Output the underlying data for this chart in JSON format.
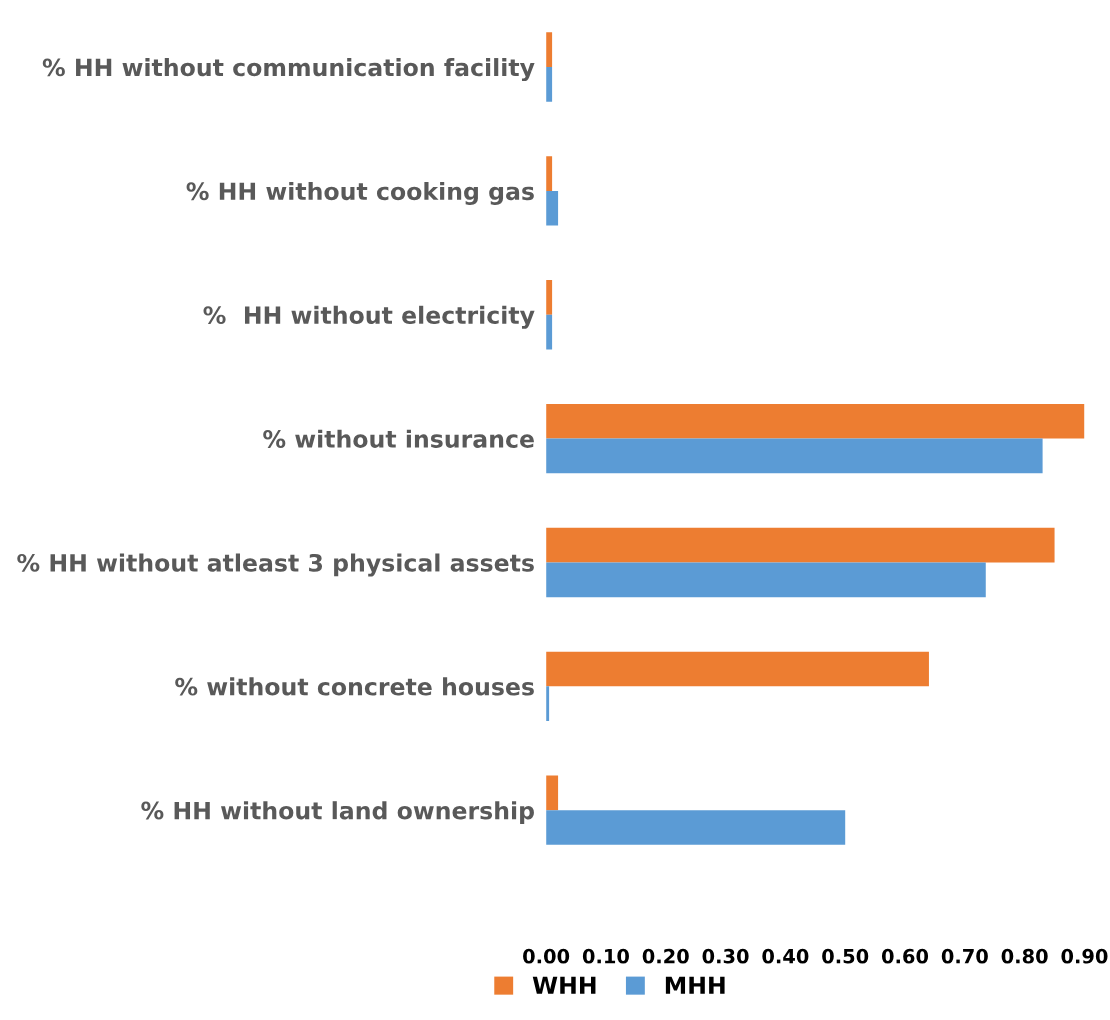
{
  "chart_data": {
    "type": "bar",
    "orientation": "horizontal",
    "categories": [
      "% HH without communication facility",
      "% HH without cooking gas",
      "%  HH without electricity",
      "% without insurance",
      "% HH without atleast 3 physical assets",
      "% without concrete houses",
      "% HH without land ownership"
    ],
    "series": [
      {
        "name": "WHH",
        "color": "#ed7d31",
        "values": [
          0.01,
          0.01,
          0.01,
          0.9,
          0.85,
          0.64,
          0.02
        ]
      },
      {
        "name": "MHH",
        "color": "#5b9bd5",
        "values": [
          0.01,
          0.02,
          0.01,
          0.83,
          0.735,
          0.005,
          0.5
        ]
      }
    ],
    "xlim": [
      0,
      0.9
    ],
    "xticks": [
      {
        "value": 0,
        "label": "0.00"
      },
      {
        "value": 0.1,
        "label": "0.10"
      },
      {
        "value": 0.2,
        "label": "0.20"
      },
      {
        "value": 0.3,
        "label": "0.30"
      },
      {
        "value": 0.4,
        "label": "0.40"
      },
      {
        "value": 0.5,
        "label": "0.50"
      },
      {
        "value": 0.6,
        "label": "0.60"
      },
      {
        "value": 0.7,
        "label": "0.70"
      },
      {
        "value": 0.8,
        "label": "0.80"
      },
      {
        "value": 0.9,
        "label": "0.90"
      }
    ],
    "grid": false,
    "legend": "bottom"
  }
}
